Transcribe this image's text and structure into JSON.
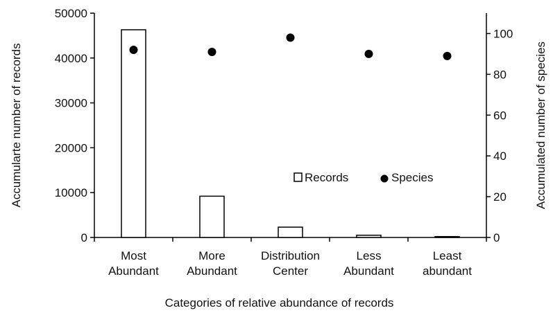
{
  "chart_data": {
    "type": "bar",
    "categories": [
      [
        "Most",
        "Abundant"
      ],
      [
        "More",
        "Abundant"
      ],
      [
        "Distribution",
        "Center"
      ],
      [
        "Less",
        "Abundant"
      ],
      [
        "Least",
        "abundant"
      ]
    ],
    "series": [
      {
        "name": "Records",
        "type": "bar",
        "axis": "left",
        "values": [
          46300,
          9200,
          2300,
          500,
          200
        ]
      },
      {
        "name": "Species",
        "type": "scatter",
        "axis": "right",
        "values": [
          92,
          91,
          98,
          90,
          89
        ]
      }
    ],
    "xlabel": "Categories of relative abundance of records",
    "ylabel_left": "Accumularte number of records",
    "ylabel_right": "Accumulated number of species",
    "ylim_left": [
      0,
      50000
    ],
    "yticks_left": [
      0,
      10000,
      20000,
      30000,
      40000,
      50000
    ],
    "ylim_right": [
      0,
      110
    ],
    "yticks_right": [
      0,
      20,
      40,
      60,
      80,
      100
    ],
    "grid": false,
    "legend": "center-right",
    "colors": {
      "bar_fill": "#ffffff",
      "bar_stroke": "#000000",
      "marker": "#000000",
      "axis": "#000000"
    }
  }
}
